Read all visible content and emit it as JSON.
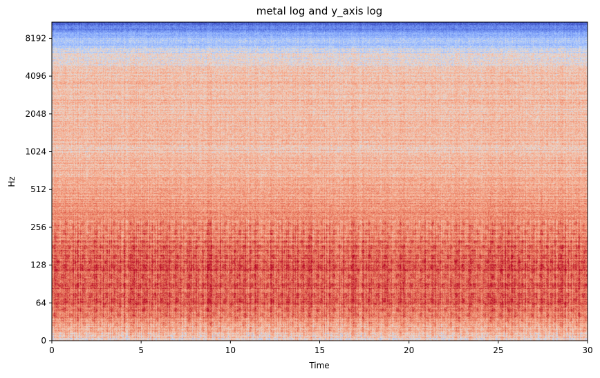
{
  "chart_data": {
    "type": "heatmap",
    "title": "metal log and y_axis log",
    "xlabel": "Time",
    "ylabel": "Hz",
    "xlim": [
      0,
      30
    ],
    "x_ticks": [
      0,
      5,
      10,
      15,
      20,
      25,
      30
    ],
    "y_scale": "symlog",
    "y_ticks": [
      0,
      64,
      128,
      256,
      512,
      1024,
      2048,
      4096,
      8192
    ],
    "colormap": "coolwarm",
    "colors": {
      "low": "#3b4cc0",
      "mid": "#dddddd",
      "high": "#b40426"
    },
    "energy_profile_by_frequency": [
      {
        "hz": 0,
        "level": 0.55
      },
      {
        "hz": 40,
        "level": 0.75
      },
      {
        "hz": 64,
        "level": 0.82
      },
      {
        "hz": 128,
        "level": 0.85
      },
      {
        "hz": 256,
        "level": 0.75
      },
      {
        "hz": 512,
        "level": 0.68
      },
      {
        "hz": 1024,
        "level": 0.62
      },
      {
        "hz": 2048,
        "level": 0.63
      },
      {
        "hz": 4096,
        "level": 0.62
      },
      {
        "hz": 6000,
        "level": 0.5
      },
      {
        "hz": 8192,
        "level": 0.36
      },
      {
        "hz": 11025,
        "level": 0.05
      }
    ]
  }
}
